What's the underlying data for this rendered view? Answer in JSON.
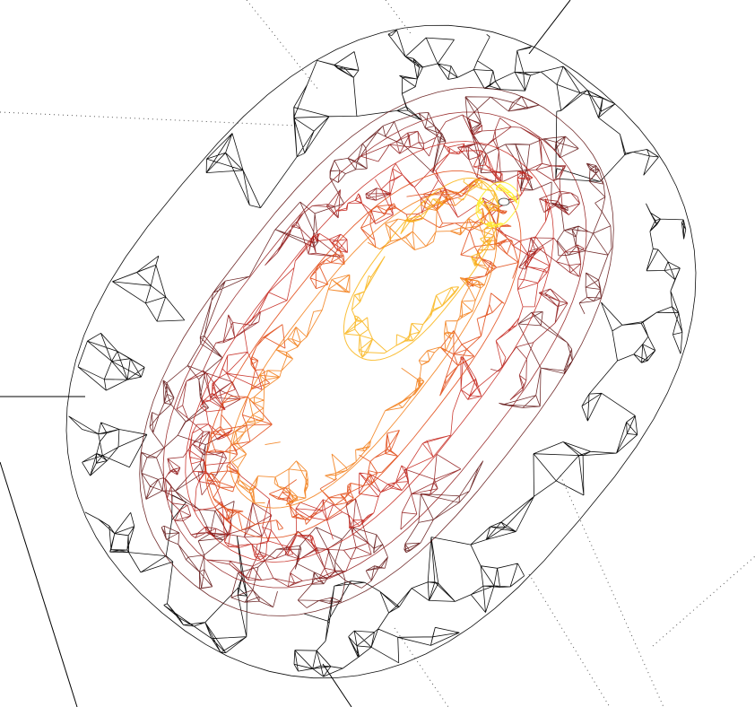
{
  "scene": {
    "kind": "3d-wireframe-isosurfaces",
    "background_color": "#ffffff",
    "axis_line_color": "#000000",
    "grid_dot_color": "#555555",
    "shells": [
      {
        "name": "outer-shell",
        "stroke": "#000000"
      },
      {
        "name": "shell-2",
        "stroke": "#5a0a0a"
      },
      {
        "name": "shell-3",
        "stroke": "#8c1010"
      },
      {
        "name": "shell-4",
        "stroke": "#c21a10"
      },
      {
        "name": "shell-5",
        "stroke": "#e0450f"
      },
      {
        "name": "shell-6",
        "stroke": "#f27a12"
      },
      {
        "name": "shell-7",
        "stroke": "#f9b416"
      },
      {
        "name": "core",
        "stroke": "#ffee33"
      }
    ]
  }
}
